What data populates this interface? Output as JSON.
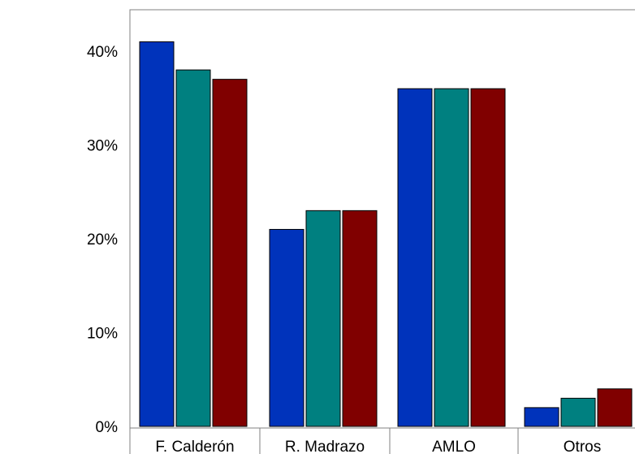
{
  "chart_data": {
    "type": "bar",
    "categories": [
      "F. Calderón",
      "R. Madrazo",
      "AMLO",
      "Otros"
    ],
    "series": [
      {
        "color": "#0033bb",
        "values": [
          41,
          21,
          36,
          2
        ]
      },
      {
        "color": "#008080",
        "values": [
          38,
          23,
          36,
          3
        ]
      },
      {
        "color": "#800000",
        "values": [
          37,
          23,
          36,
          4
        ]
      }
    ],
    "yticks": [
      {
        "value": 0,
        "label": "0%"
      },
      {
        "value": 10,
        "label": "10%"
      },
      {
        "value": 20,
        "label": "20%"
      },
      {
        "value": 30,
        "label": "30%"
      },
      {
        "value": 40,
        "label": "40%"
      }
    ],
    "ylim": [
      0,
      45
    ],
    "grid": false,
    "legend": "none"
  }
}
